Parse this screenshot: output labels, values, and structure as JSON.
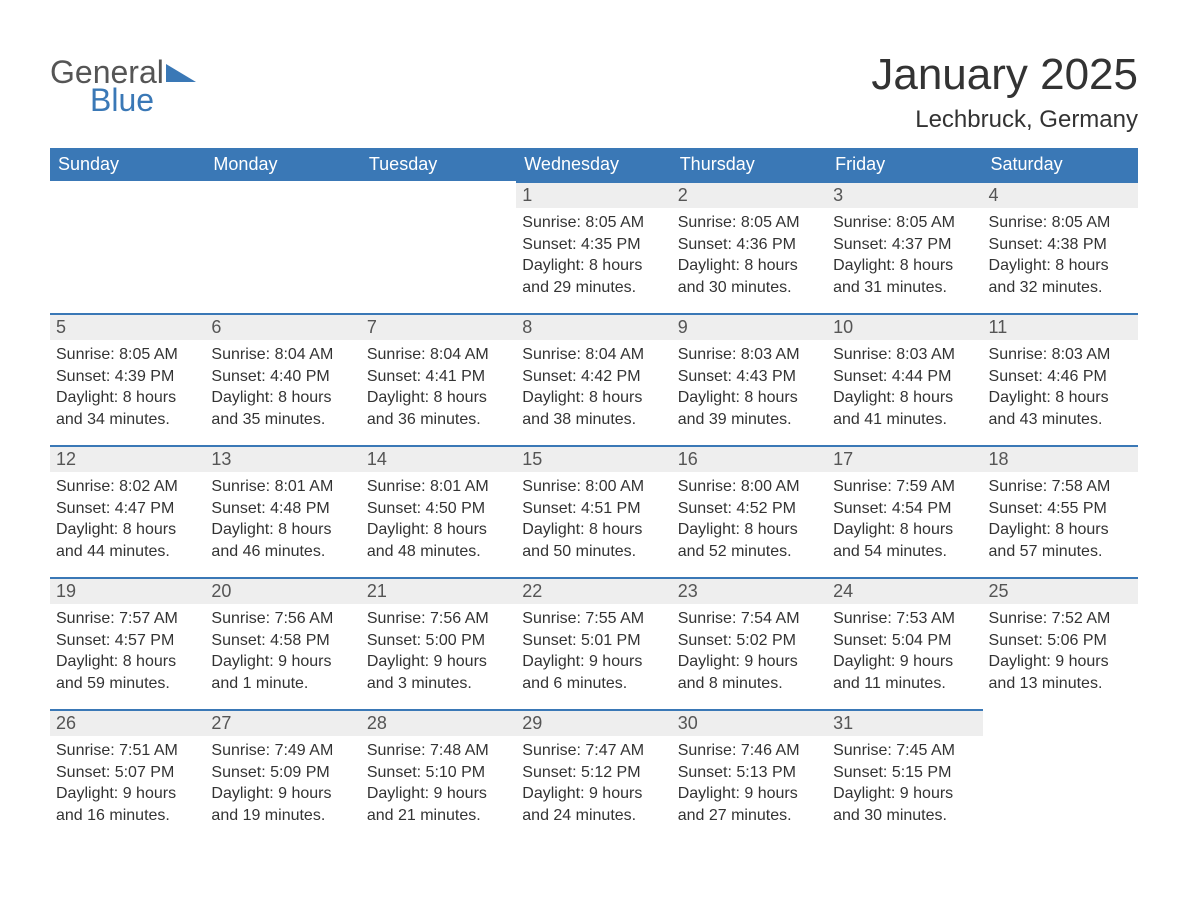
{
  "logo": {
    "text1": "General",
    "text2": "Blue",
    "triangle_color": "#3a78b6"
  },
  "title": "January 2025",
  "subtitle": "Lechbruck, Germany",
  "colors": {
    "header_bg": "#3a78b6",
    "header_text": "#ffffff",
    "daynum_bg": "#eeeeee",
    "daynum_border": "#3a78b6",
    "body_text": "#333333"
  },
  "weekdays": [
    "Sunday",
    "Monday",
    "Tuesday",
    "Wednesday",
    "Thursday",
    "Friday",
    "Saturday"
  ],
  "weeks": [
    [
      null,
      null,
      null,
      {
        "n": "1",
        "sunrise": "8:05 AM",
        "sunset": "4:35 PM",
        "daylight": "8 hours and 29 minutes."
      },
      {
        "n": "2",
        "sunrise": "8:05 AM",
        "sunset": "4:36 PM",
        "daylight": "8 hours and 30 minutes."
      },
      {
        "n": "3",
        "sunrise": "8:05 AM",
        "sunset": "4:37 PM",
        "daylight": "8 hours and 31 minutes."
      },
      {
        "n": "4",
        "sunrise": "8:05 AM",
        "sunset": "4:38 PM",
        "daylight": "8 hours and 32 minutes."
      }
    ],
    [
      {
        "n": "5",
        "sunrise": "8:05 AM",
        "sunset": "4:39 PM",
        "daylight": "8 hours and 34 minutes."
      },
      {
        "n": "6",
        "sunrise": "8:04 AM",
        "sunset": "4:40 PM",
        "daylight": "8 hours and 35 minutes."
      },
      {
        "n": "7",
        "sunrise": "8:04 AM",
        "sunset": "4:41 PM",
        "daylight": "8 hours and 36 minutes."
      },
      {
        "n": "8",
        "sunrise": "8:04 AM",
        "sunset": "4:42 PM",
        "daylight": "8 hours and 38 minutes."
      },
      {
        "n": "9",
        "sunrise": "8:03 AM",
        "sunset": "4:43 PM",
        "daylight": "8 hours and 39 minutes."
      },
      {
        "n": "10",
        "sunrise": "8:03 AM",
        "sunset": "4:44 PM",
        "daylight": "8 hours and 41 minutes."
      },
      {
        "n": "11",
        "sunrise": "8:03 AM",
        "sunset": "4:46 PM",
        "daylight": "8 hours and 43 minutes."
      }
    ],
    [
      {
        "n": "12",
        "sunrise": "8:02 AM",
        "sunset": "4:47 PM",
        "daylight": "8 hours and 44 minutes."
      },
      {
        "n": "13",
        "sunrise": "8:01 AM",
        "sunset": "4:48 PM",
        "daylight": "8 hours and 46 minutes."
      },
      {
        "n": "14",
        "sunrise": "8:01 AM",
        "sunset": "4:50 PM",
        "daylight": "8 hours and 48 minutes."
      },
      {
        "n": "15",
        "sunrise": "8:00 AM",
        "sunset": "4:51 PM",
        "daylight": "8 hours and 50 minutes."
      },
      {
        "n": "16",
        "sunrise": "8:00 AM",
        "sunset": "4:52 PM",
        "daylight": "8 hours and 52 minutes."
      },
      {
        "n": "17",
        "sunrise": "7:59 AM",
        "sunset": "4:54 PM",
        "daylight": "8 hours and 54 minutes."
      },
      {
        "n": "18",
        "sunrise": "7:58 AM",
        "sunset": "4:55 PM",
        "daylight": "8 hours and 57 minutes."
      }
    ],
    [
      {
        "n": "19",
        "sunrise": "7:57 AM",
        "sunset": "4:57 PM",
        "daylight": "8 hours and 59 minutes."
      },
      {
        "n": "20",
        "sunrise": "7:56 AM",
        "sunset": "4:58 PM",
        "daylight": "9 hours and 1 minute."
      },
      {
        "n": "21",
        "sunrise": "7:56 AM",
        "sunset": "5:00 PM",
        "daylight": "9 hours and 3 minutes."
      },
      {
        "n": "22",
        "sunrise": "7:55 AM",
        "sunset": "5:01 PM",
        "daylight": "9 hours and 6 minutes."
      },
      {
        "n": "23",
        "sunrise": "7:54 AM",
        "sunset": "5:02 PM",
        "daylight": "9 hours and 8 minutes."
      },
      {
        "n": "24",
        "sunrise": "7:53 AM",
        "sunset": "5:04 PM",
        "daylight": "9 hours and 11 minutes."
      },
      {
        "n": "25",
        "sunrise": "7:52 AM",
        "sunset": "5:06 PM",
        "daylight": "9 hours and 13 minutes."
      }
    ],
    [
      {
        "n": "26",
        "sunrise": "7:51 AM",
        "sunset": "5:07 PM",
        "daylight": "9 hours and 16 minutes."
      },
      {
        "n": "27",
        "sunrise": "7:49 AM",
        "sunset": "5:09 PM",
        "daylight": "9 hours and 19 minutes."
      },
      {
        "n": "28",
        "sunrise": "7:48 AM",
        "sunset": "5:10 PM",
        "daylight": "9 hours and 21 minutes."
      },
      {
        "n": "29",
        "sunrise": "7:47 AM",
        "sunset": "5:12 PM",
        "daylight": "9 hours and 24 minutes."
      },
      {
        "n": "30",
        "sunrise": "7:46 AM",
        "sunset": "5:13 PM",
        "daylight": "9 hours and 27 minutes."
      },
      {
        "n": "31",
        "sunrise": "7:45 AM",
        "sunset": "5:15 PM",
        "daylight": "9 hours and 30 minutes."
      },
      null
    ]
  ]
}
